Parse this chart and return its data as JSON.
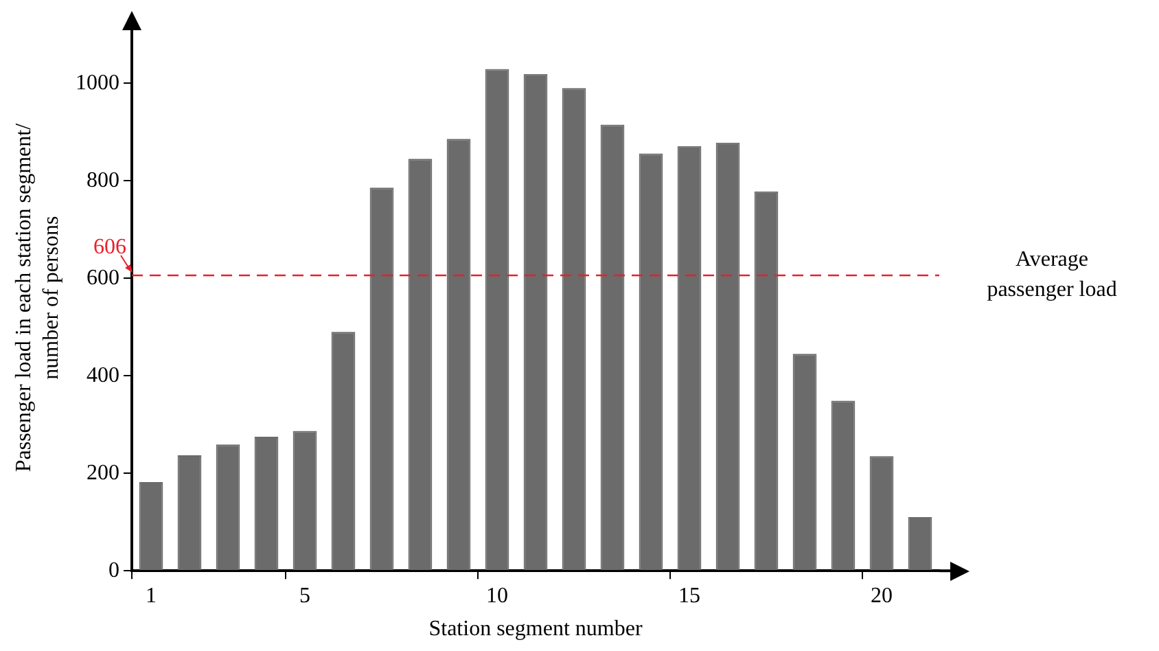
{
  "chart_data": {
    "type": "bar",
    "xlabel": "Station segment number",
    "ylabel": "Passenger load in each station segment/ number of persons",
    "categories": [
      "1",
      null,
      null,
      null,
      "5",
      null,
      null,
      null,
      null,
      "10",
      null,
      null,
      null,
      null,
      "15",
      null,
      null,
      null,
      null,
      "20",
      null
    ],
    "values": [
      182,
      237,
      259,
      275,
      287,
      490,
      786,
      845,
      886,
      1029,
      1019,
      990,
      915,
      856,
      871,
      878,
      778,
      445,
      349,
      235,
      110
    ],
    "color": "#6b6b6b",
    "ylim": [
      0,
      1120
    ],
    "yticks": [
      0,
      200,
      400,
      600,
      800,
      1000
    ],
    "ref_lines": [
      {
        "axis": "y",
        "value": 606,
        "label": "Average passenger load",
        "color": "#e8202a",
        "line_style": "dashed"
      }
    ],
    "annotations": [
      "606"
    ],
    "grid": false,
    "legend": false
  }
}
